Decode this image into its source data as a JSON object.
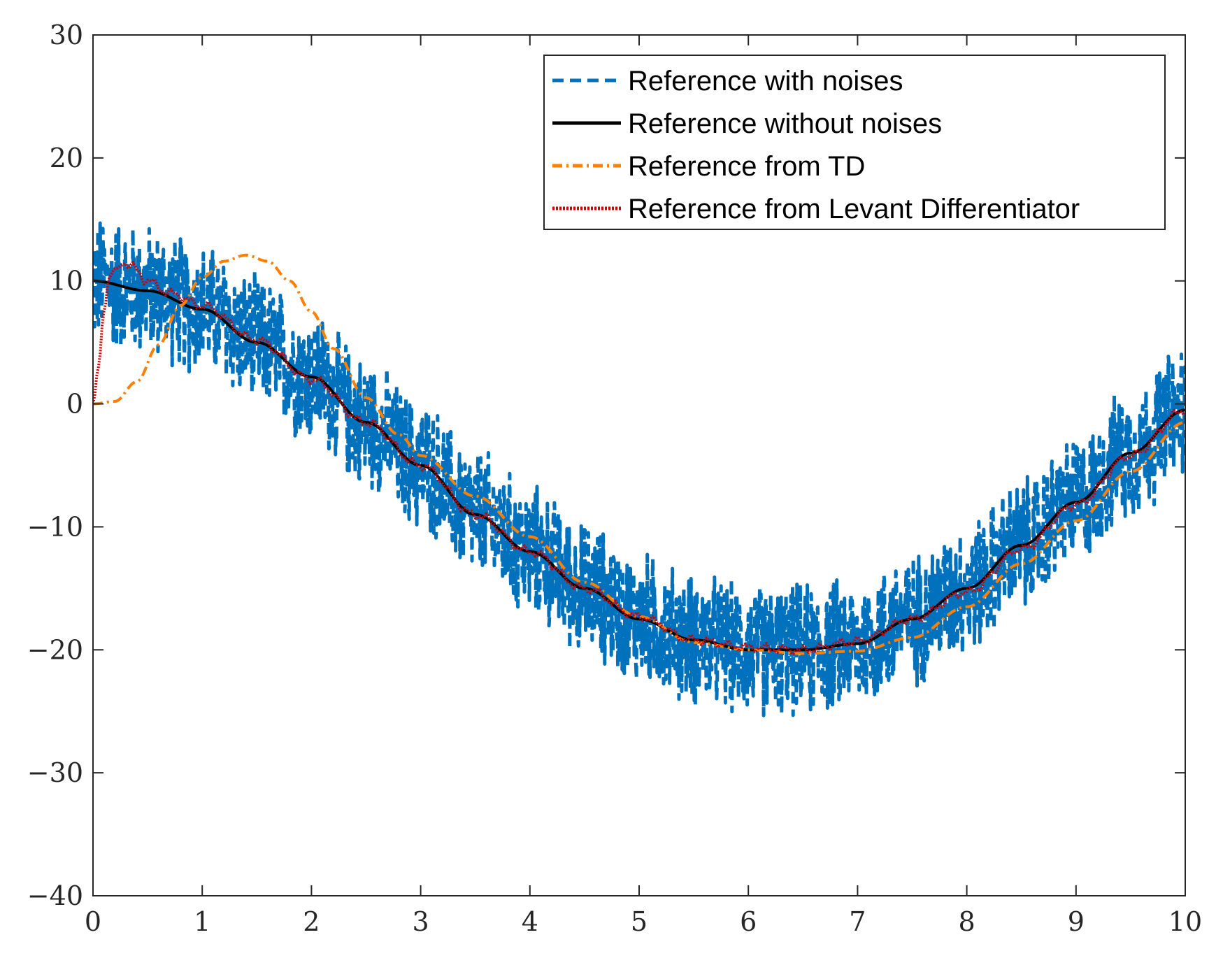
{
  "chart_data": {
    "type": "line",
    "title": "",
    "xlabel": "",
    "ylabel": "",
    "xlim": [
      0,
      10
    ],
    "ylim": [
      -40,
      30
    ],
    "xticks": [
      0,
      1,
      2,
      3,
      4,
      5,
      6,
      7,
      8,
      9,
      10
    ],
    "yticks": [
      -40,
      -30,
      -20,
      -10,
      0,
      10,
      20,
      30
    ],
    "xtick_labels": [
      "0",
      "1",
      "2",
      "3",
      "4",
      "5",
      "6",
      "7",
      "8",
      "9",
      "10"
    ],
    "ytick_labels": [
      "−40",
      "−30",
      "−20",
      "−10",
      "0",
      "10",
      "20",
      "30"
    ],
    "grid": false,
    "legend_position": "top-right",
    "series": [
      {
        "name": "Reference with noises",
        "style": "dashed",
        "color": "#0072BD",
        "noise_amplitude": 6,
        "x": [
          0,
          0.5,
          1,
          1.5,
          2,
          2.5,
          3,
          3.5,
          4,
          4.5,
          5,
          5.5,
          6,
          6.5,
          7,
          7.5,
          8,
          8.5,
          9,
          9.5,
          10
        ],
        "y": [
          10,
          9.2,
          7.7,
          5.0,
          2.2,
          -1.5,
          -5.0,
          -9.0,
          -12.0,
          -15.0,
          -17.5,
          -19.2,
          -20.0,
          -20.0,
          -19.5,
          -17.5,
          -15.0,
          -11.5,
          -8.0,
          -4.0,
          -0.5
        ]
      },
      {
        "name": "Reference without noises",
        "style": "solid",
        "color": "#000000",
        "x": [
          0,
          0.5,
          1,
          1.5,
          2,
          2.5,
          3,
          3.5,
          4,
          4.5,
          5,
          5.5,
          6,
          6.5,
          7,
          7.5,
          8,
          8.5,
          9,
          9.5,
          10
        ],
        "y": [
          10,
          9.2,
          7.7,
          5.0,
          2.2,
          -1.5,
          -5.0,
          -9.0,
          -12.0,
          -15.0,
          -17.5,
          -19.2,
          -20.0,
          -20.0,
          -19.5,
          -17.5,
          -15.0,
          -11.5,
          -8.0,
          -4.0,
          -0.5
        ]
      },
      {
        "name": "Reference from TD",
        "style": "dash-dot",
        "color": "#FF8000",
        "x": [
          0,
          0.2,
          0.4,
          0.6,
          0.8,
          1.0,
          1.2,
          1.4,
          1.6,
          1.8,
          2.0,
          2.2,
          2.5,
          2.8,
          3.0,
          3.5,
          4.0,
          4.5,
          5.0,
          5.5,
          6.0,
          6.5,
          7.0,
          7.5,
          8.0,
          8.5,
          9.0,
          9.5,
          10.0
        ],
        "y": [
          0,
          0.2,
          1.8,
          4.8,
          8.0,
          10.3,
          11.6,
          12.1,
          11.6,
          10.0,
          7.5,
          4.5,
          0.5,
          -2.5,
          -4.2,
          -7.5,
          -10.8,
          -14.5,
          -17.3,
          -19.4,
          -20.0,
          -20.3,
          -20.1,
          -19.0,
          -16.5,
          -13.0,
          -9.5,
          -5.5,
          -1.5
        ]
      },
      {
        "name": "Reference from Levant Differentiator",
        "style": "dotted",
        "color": "#CC0000",
        "x": [
          0,
          0.05,
          0.1,
          0.15,
          0.2,
          0.3,
          0.35,
          0.5,
          0.7,
          1.0,
          1.5,
          2.0,
          2.5,
          3.0,
          3.5,
          4.0,
          4.5,
          5.0,
          5.5,
          6.0,
          6.5,
          7.0,
          7.5,
          8.0,
          8.5,
          9.0,
          9.5,
          10.0
        ],
        "y": [
          0,
          3,
          7.5,
          10.3,
          11.0,
          11.4,
          11.2,
          10.0,
          9.0,
          8.0,
          5.2,
          2.0,
          -1.5,
          -5.0,
          -9.0,
          -12.0,
          -15.0,
          -17.3,
          -19.2,
          -19.8,
          -20.0,
          -19.3,
          -17.5,
          -15.3,
          -11.8,
          -8.2,
          -4.2,
          -0.5
        ]
      }
    ]
  }
}
